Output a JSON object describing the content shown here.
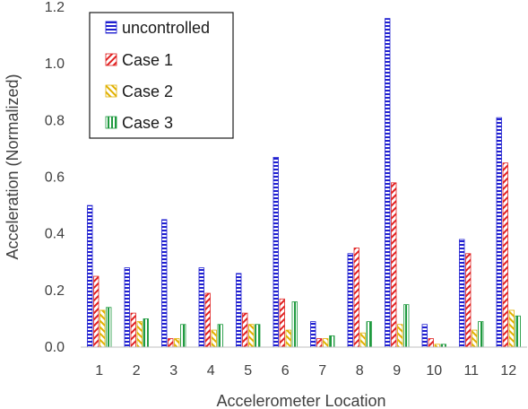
{
  "chart_data": {
    "type": "bar",
    "title": "",
    "xlabel": "Accelerometer Location",
    "ylabel": "Acceleration (Normalized)",
    "ylim": [
      0,
      1.2
    ],
    "yticks": [
      "0.0",
      "0.2",
      "0.4",
      "0.6",
      "0.8",
      "1.0",
      "1.2"
    ],
    "categories": [
      "1",
      "2",
      "3",
      "4",
      "5",
      "6",
      "7",
      "8",
      "9",
      "10",
      "11",
      "12"
    ],
    "legend_position": "top-left",
    "grid": false,
    "series": [
      {
        "name": "uncontrolled",
        "pattern": "blue-dashes",
        "color": "#1f1fd0",
        "values": [
          0.5,
          0.28,
          0.45,
          0.28,
          0.26,
          0.67,
          0.09,
          0.33,
          1.16,
          0.08,
          0.38,
          0.81
        ]
      },
      {
        "name": "Case 1",
        "pattern": "red-diagonal",
        "color": "#e02020",
        "values": [
          0.25,
          0.12,
          0.03,
          0.19,
          0.12,
          0.17,
          0.03,
          0.35,
          0.58,
          0.03,
          0.33,
          0.65
        ]
      },
      {
        "name": "Case 2",
        "pattern": "yellow-diagonal",
        "color": "#e0b000",
        "values": [
          0.13,
          0.09,
          0.03,
          0.06,
          0.08,
          0.06,
          0.03,
          0.05,
          0.08,
          0.01,
          0.06,
          0.13
        ]
      },
      {
        "name": "Case 3",
        "pattern": "green-vertical",
        "color": "#1f9a3f",
        "values": [
          0.14,
          0.1,
          0.08,
          0.08,
          0.08,
          0.16,
          0.04,
          0.09,
          0.15,
          0.01,
          0.09,
          0.11
        ]
      }
    ]
  }
}
